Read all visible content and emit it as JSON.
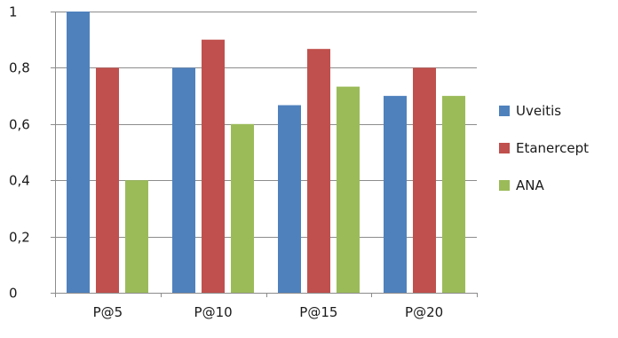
{
  "chart_data": {
    "type": "bar",
    "categories": [
      "P@5",
      "P@10",
      "P@15",
      "P@20"
    ],
    "series": [
      {
        "name": "Uveitis",
        "color": "#4f81bd",
        "values": [
          1.0,
          0.8,
          0.667,
          0.7
        ]
      },
      {
        "name": "Etanercept",
        "color": "#c0504d",
        "values": [
          0.8,
          0.9,
          0.867,
          0.8
        ]
      },
      {
        "name": "ANA",
        "color": "#9bbb59",
        "values": [
          0.4,
          0.6,
          0.733,
          0.7
        ]
      }
    ],
    "ylim": [
      0,
      1
    ],
    "yticks": [
      0,
      0.2,
      0.4,
      0.6,
      0.8,
      1
    ],
    "ytick_labels": [
      "0",
      "0,2",
      "0,4",
      "0,6",
      "0,8",
      "1"
    ],
    "grid": true,
    "gridline_color": "#8c8c8c",
    "legend_position": "right",
    "title": "",
    "xlabel": "",
    "ylabel": ""
  }
}
